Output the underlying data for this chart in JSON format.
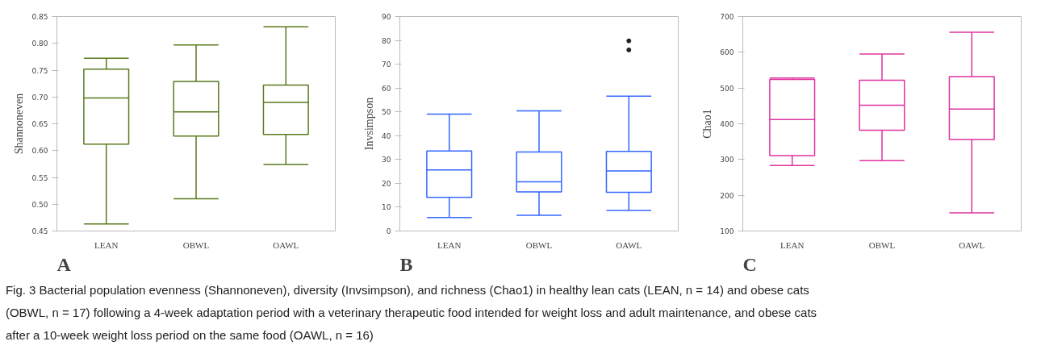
{
  "chart_data": [
    {
      "type": "box",
      "ylabel": "Shannoneven",
      "categories": [
        "LEAN",
        "OBWL",
        "OAWL"
      ],
      "color": "#5a7a1e",
      "grid": false,
      "ylim": [
        0.45,
        0.85
      ],
      "yticks": [
        {
          "value": 0.45,
          "label": "0.45"
        },
        {
          "value": 0.5,
          "label": "0.50"
        },
        {
          "value": 0.55,
          "label": "0.55"
        },
        {
          "value": 0.6,
          "label": "0.60"
        },
        {
          "value": 0.65,
          "label": "0.65"
        },
        {
          "value": 0.7,
          "label": "0.70"
        },
        {
          "value": 0.75,
          "label": "0.75"
        },
        {
          "value": 0.8,
          "label": "0.80"
        },
        {
          "value": 0.85,
          "label": "0.85"
        }
      ],
      "boxes": [
        {
          "low": 0.463,
          "q1": 0.612,
          "median": 0.698,
          "q3": 0.752,
          "high": 0.772
        },
        {
          "low": 0.51,
          "q1": 0.627,
          "median": 0.672,
          "q3": 0.729,
          "high": 0.797
        },
        {
          "low": 0.574,
          "q1": 0.63,
          "median": 0.69,
          "q3": 0.722,
          "high": 0.831
        }
      ],
      "annotations": [
        "A"
      ]
    },
    {
      "type": "box",
      "ylabel": "Invsimpson",
      "categories": [
        "LEAN",
        "OBWL",
        "OAWL"
      ],
      "color": "#3366ff",
      "grid": false,
      "ylim": [
        0,
        90
      ],
      "yticks": [
        0,
        10,
        20,
        30,
        40,
        50,
        60,
        70,
        80,
        90
      ],
      "boxes": [
        {
          "low": 5.7,
          "q1": 14.1,
          "median": 25.6,
          "q3": 33.6,
          "high": 49.1
        },
        {
          "low": 6.6,
          "q1": 16.4,
          "median": 20.6,
          "q3": 33.2,
          "high": 50.4
        },
        {
          "low": 8.6,
          "q1": 16.2,
          "median": 25.2,
          "q3": 33.4,
          "high": 56.6,
          "outliers": [
            79.8,
            76
          ]
        }
      ],
      "annotations": [
        "B"
      ]
    },
    {
      "type": "box",
      "ylabel": "Chao1",
      "categories": [
        "LEAN",
        "OBWL",
        "OAWL"
      ],
      "color": "#e0339f",
      "grid": false,
      "ylim": [
        100,
        700
      ],
      "yticks": [
        100,
        200,
        300,
        400,
        500,
        600,
        700
      ],
      "boxes": [
        {
          "low": 283,
          "q1": 311,
          "median": 412,
          "q3": 524,
          "high": 528
        },
        {
          "low": 297,
          "q1": 382,
          "median": 452,
          "q3": 522,
          "high": 595
        },
        {
          "low": 151,
          "q1": 356,
          "median": 441,
          "q3": 532,
          "high": 656
        }
      ],
      "annotations": [
        "C"
      ]
    },
    {
      "type": "other",
      "annotations": [
        "Fig. 3 Bacterial population evenness (Shannoneven), diversity (Invsimpson), and richness (Chao1) in healthy lean cats (LEAN, n = 14) and obese cats (OBWL, n = 17) following a 4-week adaptation period with a veterinary therapeutic food intended for weight loss and adult maintenance, and obese cats after a 10-week weight loss period on the same food (OAWL, n = 16)"
      ]
    }
  ]
}
